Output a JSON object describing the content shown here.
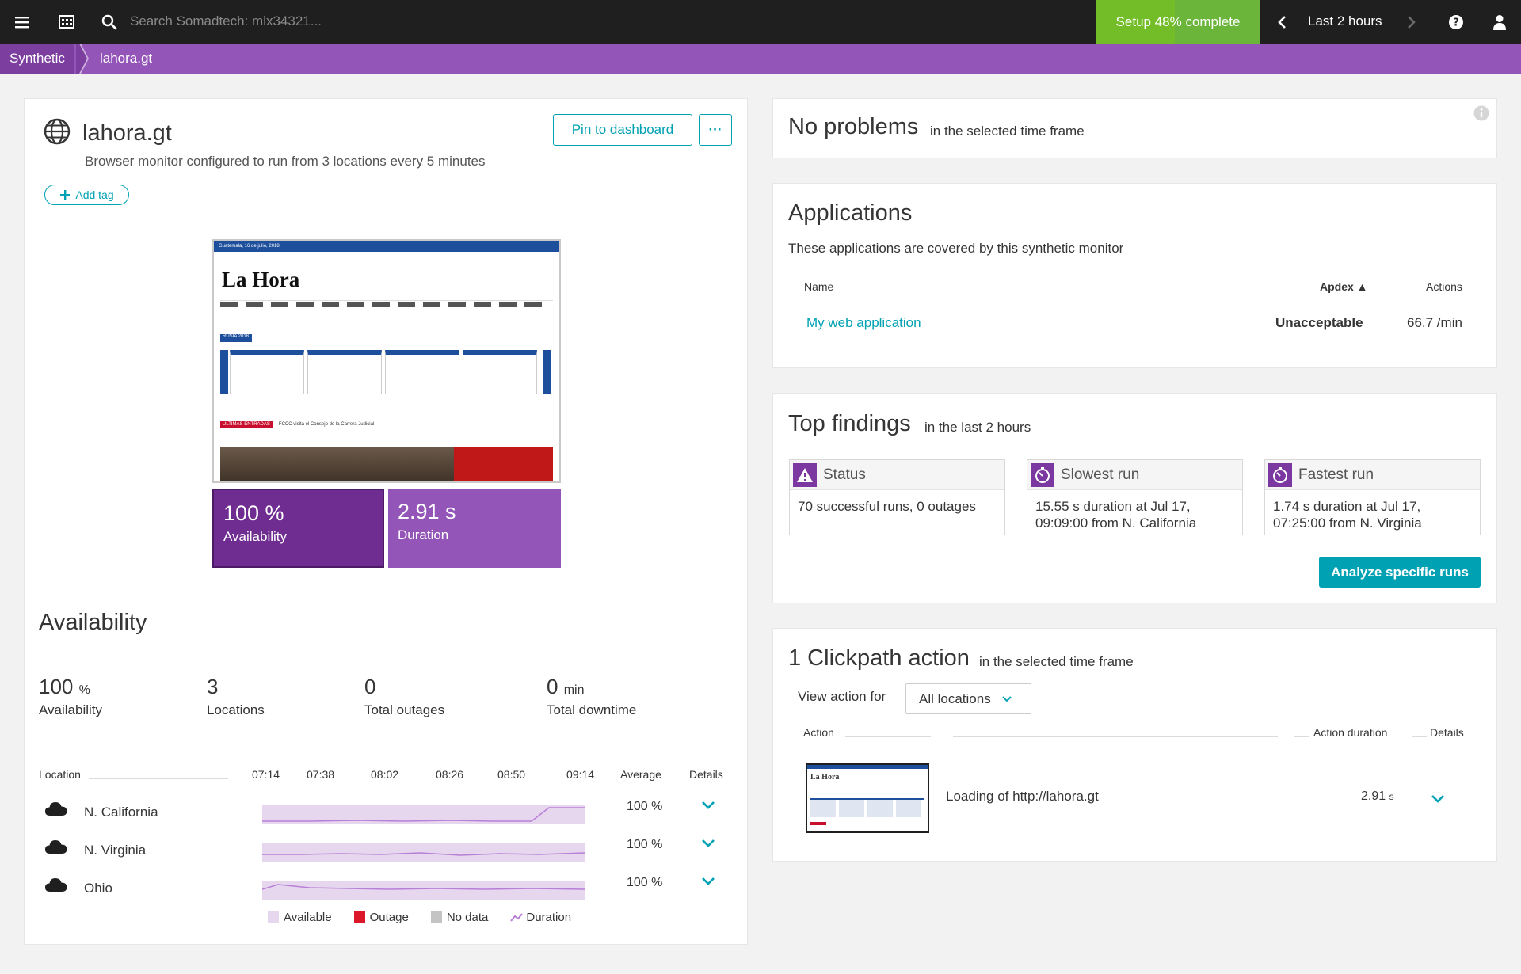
{
  "topbar": {
    "menu_icon": "hamburger-icon",
    "apps_icon": "dashboard-icon",
    "search_placeholder": "Search Somadtech: mlx34321...",
    "setup_label": "Setup 48% complete",
    "setup_progress": 0.48,
    "timeframe_label": "Last 2 hours",
    "help_icon": "help-icon",
    "user_icon": "user-icon"
  },
  "breadcrumb": {
    "items": [
      "Synthetic",
      "lahora.gt"
    ]
  },
  "monitor": {
    "title": "lahora.gt",
    "description": "Browser monitor configured to run from 3 locations every 5 minutes",
    "pin_label": "Pin to dashboard",
    "more_label": "···",
    "add_tag_label": "Add tag",
    "kpis": [
      {
        "value": "100 %",
        "label": "Availability"
      },
      {
        "value": "2.91 s",
        "label": "Duration"
      }
    ],
    "thumb": {
      "date": "Guatemala, 16 de julio, 2018",
      "logo": "La Hora",
      "section": "RUSIA 2018",
      "news_tag": "ULTIMAS ENTRADAS",
      "news_text": "FCCC visita el Consejo de la Carrera Judicial"
    }
  },
  "availability": {
    "title": "Availability",
    "stats": [
      {
        "value": "100",
        "unit": "%",
        "label": "Availability"
      },
      {
        "value": "3",
        "unit": "",
        "label": "Locations"
      },
      {
        "value": "0",
        "unit": "",
        "label": "Total outages"
      },
      {
        "value": "0",
        "unit": "min",
        "label": "Total downtime"
      }
    ],
    "columns": {
      "location": "Location",
      "average": "Average",
      "details": "Details"
    },
    "times": [
      "07:14",
      "07:38",
      "08:02",
      "08:26",
      "08:50",
      "09:14"
    ],
    "rows": [
      {
        "location": "N. California",
        "average": "100 %"
      },
      {
        "location": "N. Virginia",
        "average": "100 %"
      },
      {
        "location": "Ohio",
        "average": "100 %"
      }
    ],
    "legend": [
      "Available",
      "Outage",
      "No data",
      "Duration"
    ],
    "colors": {
      "available": "#e6d7ef",
      "outage": "#dc172a",
      "nodata": "#c4c4c4",
      "duration": "#b87fd6"
    }
  },
  "problems": {
    "title": "No problems",
    "subtitle": "in the selected time frame"
  },
  "applications": {
    "title": "Applications",
    "description": "These applications are covered by this synthetic monitor",
    "columns": {
      "name": "Name",
      "apdex": "Apdex ▲",
      "actions": "Actions"
    },
    "rows": [
      {
        "name": "My web application",
        "apdex": "Unacceptable",
        "actions": "66.7 /min"
      }
    ]
  },
  "findings": {
    "title": "Top findings",
    "subtitle": "in the last 2 hours",
    "items": [
      {
        "title": "Status",
        "icon": "warning-icon",
        "text": "70 successful runs, 0 outages"
      },
      {
        "title": "Slowest run",
        "icon": "stopwatch-icon",
        "text": "15.55 s duration at Jul 17, 09:09:00 from N. California"
      },
      {
        "title": "Fastest run",
        "icon": "stopwatch-icon",
        "text": "1.74 s duration at Jul 17, 07:25:00 from N. Virginia"
      }
    ],
    "analyze_label": "Analyze specific runs"
  },
  "clickpath": {
    "title": "1 Clickpath action",
    "subtitle": "in the selected time frame",
    "view_for_label": "View action for",
    "location_select": "All locations",
    "columns": {
      "action": "Action",
      "duration": "Action duration",
      "details": "Details"
    },
    "rows": [
      {
        "action": "Loading of http://lahora.gt",
        "duration": "2.91",
        "unit": "s"
      }
    ]
  },
  "accent": "#00a1b2",
  "brand_purple": "#9355b7"
}
